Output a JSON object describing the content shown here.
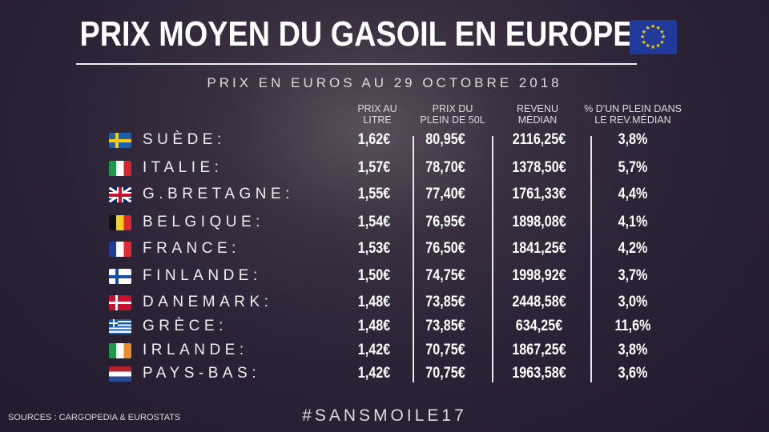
{
  "title": "PRIX MOYEN DU GASOIL EN EUROPE",
  "subtitle": "PRIX EN EUROS AU 29 OCTOBRE 2018",
  "headers": {
    "prix_litre": [
      "PRIX AU",
      "LITRE"
    ],
    "prix_plein": [
      "PRIX DU",
      "PLEIN DE 50L"
    ],
    "revenu": [
      "REVENU",
      "MÉDIAN"
    ],
    "pourcentage": [
      "% D'UN PLEIN DANS",
      "LE REV.MÉDIAN"
    ]
  },
  "rows": [
    {
      "flag": "SE",
      "country": "SUÈDE:",
      "prix_litre": "1,62€",
      "prix_plein": "80,95€",
      "revenu": "2116,25€",
      "pourcentage": "3,8%"
    },
    {
      "flag": "IT",
      "country": "ITALIE:",
      "prix_litre": "1,57€",
      "prix_plein": "78,70€",
      "revenu": "1378,50€",
      "pourcentage": "5,7%"
    },
    {
      "flag": "GB",
      "country": "G.BRETAGNE:",
      "prix_litre": "1,55€",
      "prix_plein": "77,40€",
      "revenu": "1761,33€",
      "pourcentage": "4,4%"
    },
    {
      "flag": "BE",
      "country": "BELGIQUE:",
      "prix_litre": "1,54€",
      "prix_plein": "76,95€",
      "revenu": "1898,08€",
      "pourcentage": "4,1%"
    },
    {
      "flag": "FR",
      "country": "FRANCE:",
      "prix_litre": "1,53€",
      "prix_plein": "76,50€",
      "revenu": "1841,25€",
      "pourcentage": "4,2%"
    },
    {
      "flag": "FI",
      "country": "FINLANDE:",
      "prix_litre": "1,50€",
      "prix_plein": "74,75€",
      "revenu": "1998,92€",
      "pourcentage": "3,7%"
    },
    {
      "flag": "DK",
      "country": "DANEMARK:",
      "prix_litre": "1,48€",
      "prix_plein": "73,85€",
      "revenu": "2448,58€",
      "pourcentage": "3,0%"
    },
    {
      "flag": "GR",
      "country": "GRÈCE:",
      "prix_litre": "1,48€",
      "prix_plein": "73,85€",
      "revenu": "634,25€",
      "pourcentage": "11,6%"
    },
    {
      "flag": "IE",
      "country": "IRLANDE:",
      "prix_litre": "1,42€",
      "prix_plein": "70,75€",
      "revenu": "1867,25€",
      "pourcentage": "3,8%"
    },
    {
      "flag": "NL",
      "country": "PAYS-BAS:",
      "prix_litre": "1,42€",
      "prix_plein": "70,75€",
      "revenu": "1963,58€",
      "pourcentage": "3,6%"
    }
  ],
  "sources": "SOURCES : CARGOPEDIA & EUROSTATS",
  "hashtag": "#SANSMOILE17",
  "colors": {
    "background": "#2b2236",
    "text": "#ffffff",
    "eu_blue": "#1f3a9a",
    "eu_star": "#ffd400"
  }
}
